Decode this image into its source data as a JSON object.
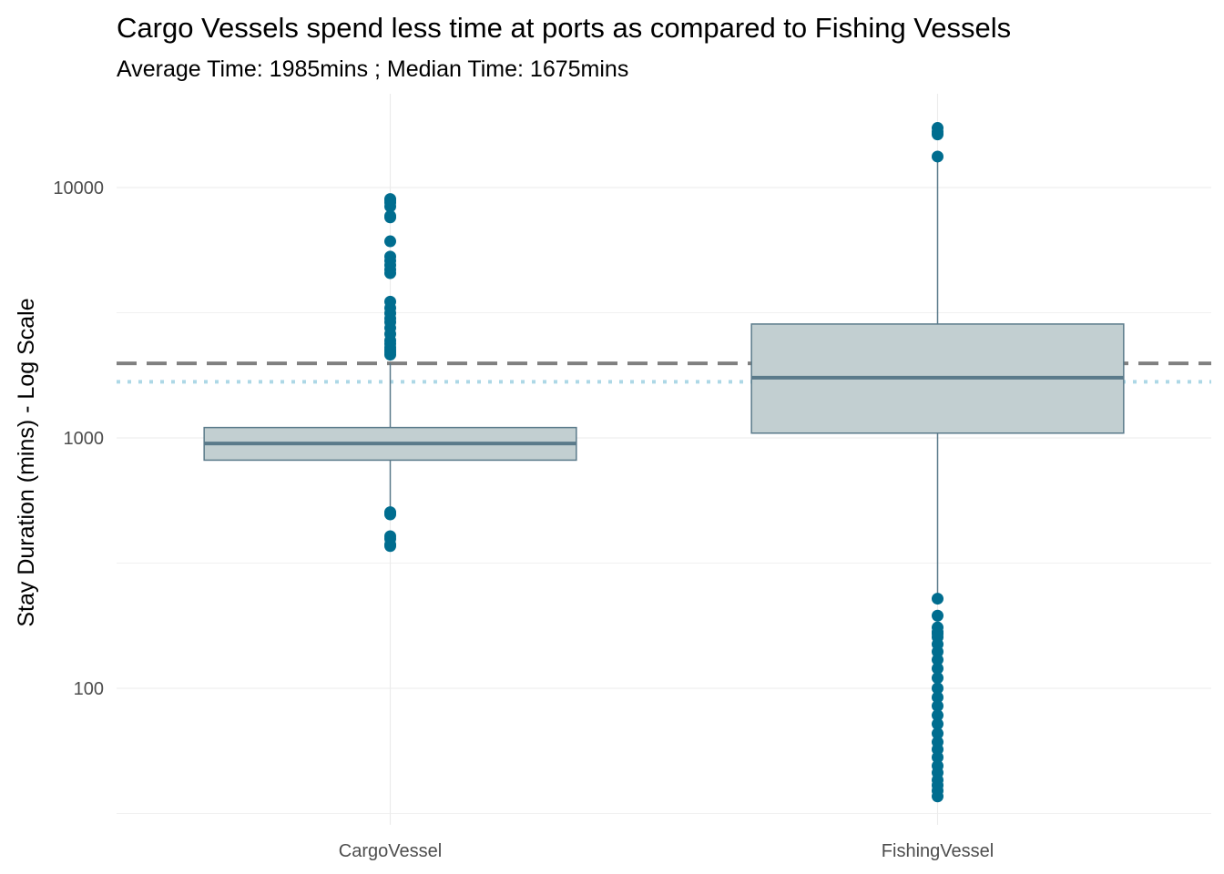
{
  "chart_data": {
    "type": "box",
    "title": "Cargo Vessels spend less time at ports as compared to Fishing Vessels",
    "subtitle": "Average Time: 1985mins ; Median Time: 1675mins",
    "xlabel": "",
    "ylabel": "Stay Duration (mins) - Log Scale",
    "y_scale": "log10",
    "ylim": [
      32,
      23000
    ],
    "y_ticks": [
      100,
      1000,
      10000
    ],
    "y_tick_labels": [
      "100",
      "1000",
      "10000"
    ],
    "grid": true,
    "categories": [
      "CargoVessel",
      "FishingVessel"
    ],
    "boxes": [
      {
        "category": "CargoVessel",
        "q1": 815,
        "median": 950,
        "q3": 1100,
        "whisker_low": 500,
        "whisker_high": 1985,
        "outliers": [
          370,
          375,
          395,
          405,
          495,
          500,
          505,
          2150,
          2200,
          2250,
          2300,
          2380,
          2450,
          2600,
          2750,
          2900,
          3000,
          3150,
          3300,
          3500,
          4550,
          4700,
          4900,
          5100,
          5300,
          6100,
          7600,
          7700,
          8400,
          8700,
          8900,
          9000
        ]
      },
      {
        "category": "FishingVessel",
        "q1": 1045,
        "median": 1740,
        "q3": 2850,
        "whisker_low": 230,
        "whisker_high": 13100,
        "outliers": [
          13300,
          16300,
          16700,
          17300,
          228,
          195,
          175,
          168,
          165,
          160,
          150,
          140,
          130,
          120,
          110,
          100,
          92,
          85,
          78,
          72,
          66,
          61,
          57,
          53,
          49,
          46,
          43,
          41,
          39,
          37
        ]
      }
    ],
    "reference_lines": [
      {
        "value": 1985,
        "style": "dashed",
        "color": "#808080"
      },
      {
        "value": 1675,
        "style": "dotted",
        "color": "#add8e6"
      }
    ],
    "colors": {
      "box_fill": "#c2cfd1",
      "box_stroke": "#5a7a8a",
      "median_line": "#5a7a8a",
      "outlier": "#006d8f",
      "grid": "#ebebeb"
    }
  }
}
